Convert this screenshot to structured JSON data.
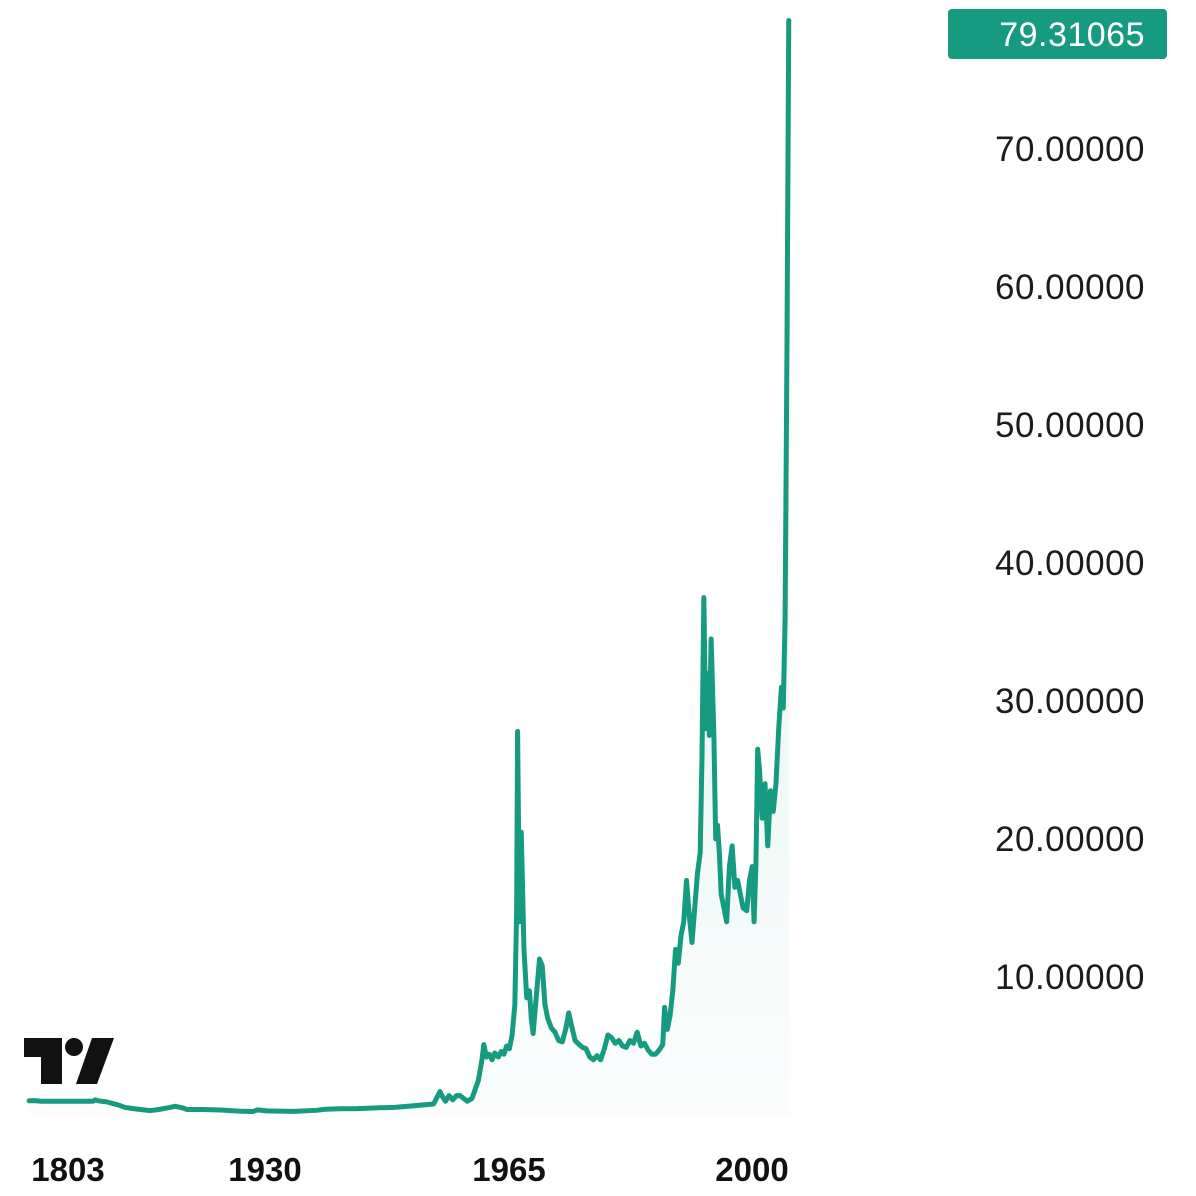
{
  "chart_data": {
    "type": "line",
    "title": "",
    "xlabel": "",
    "ylabel": "",
    "x_ticks": [
      "1803",
      "1930",
      "1965",
      "2000"
    ],
    "y_ticks": [
      "10.00000",
      "20.00000",
      "30.00000",
      "40.00000",
      "50.00000",
      "60.00000",
      "70.00000"
    ],
    "ylim": [
      0,
      79.31065
    ],
    "grid": false,
    "last_value_label": "79.31065",
    "colors": {
      "line": "#169a80",
      "badge": "#169a80",
      "logo": "#111111"
    },
    "logo_icon": "tradingview-logo-icon",
    "series": [
      {
        "values": [
          [
            1.0,
            1.03
          ],
          [
            1.6,
            1.04
          ],
          [
            2.3,
            1.0
          ],
          [
            3.0,
            1.0
          ],
          [
            8.0,
            1.0
          ],
          [
            8.27,
            1.1
          ],
          [
            8.6,
            1.02
          ],
          [
            9.5,
            0.95
          ],
          [
            10.8,
            0.72
          ],
          [
            11.5,
            0.55
          ],
          [
            12.4,
            0.46
          ],
          [
            13.2,
            0.4
          ],
          [
            14.3,
            0.32
          ],
          [
            15.2,
            0.4
          ],
          [
            16.2,
            0.52
          ],
          [
            17.0,
            0.63
          ],
          [
            17.8,
            0.52
          ],
          [
            18.3,
            0.4
          ],
          [
            20.0,
            0.4
          ],
          [
            22.0,
            0.36
          ],
          [
            23.5,
            0.3
          ],
          [
            24.0,
            0.28
          ],
          [
            25.5,
            0.25
          ],
          [
            26.0,
            0.37
          ],
          [
            27.0,
            0.3
          ],
          [
            30.0,
            0.26
          ],
          [
            32.5,
            0.34
          ],
          [
            33.5,
            0.42
          ],
          [
            35.0,
            0.45
          ],
          [
            37.0,
            0.46
          ],
          [
            39.0,
            0.52
          ],
          [
            41.0,
            0.55
          ],
          [
            43.0,
            0.66
          ],
          [
            45.3,
            0.8
          ],
          [
            46.0,
            1.7
          ],
          [
            46.3,
            1.3
          ],
          [
            46.6,
            1.0
          ],
          [
            47.0,
            1.4
          ],
          [
            47.4,
            1.1
          ],
          [
            47.8,
            1.4
          ],
          [
            48.2,
            1.4
          ],
          [
            49.0,
            1.0
          ],
          [
            49.5,
            1.2
          ],
          [
            50.2,
            2.5
          ],
          [
            50.6,
            4.0
          ],
          [
            50.8,
            5.1
          ],
          [
            51.1,
            4.2
          ],
          [
            51.4,
            4.4
          ],
          [
            51.7,
            4.0
          ],
          [
            52.0,
            4.5
          ],
          [
            52.4,
            4.2
          ],
          [
            52.7,
            4.6
          ],
          [
            53.0,
            4.4
          ],
          [
            53.3,
            5.0
          ],
          [
            53.6,
            4.8
          ],
          [
            53.9,
            5.8
          ],
          [
            54.2,
            8.0
          ],
          [
            54.4,
            15.0
          ],
          [
            54.5,
            27.8
          ],
          [
            54.7,
            14.0
          ],
          [
            54.9,
            20.5
          ],
          [
            55.2,
            12.0
          ],
          [
            55.5,
            8.5
          ],
          [
            55.8,
            9.0
          ],
          [
            56.0,
            7.0
          ],
          [
            56.2,
            5.9
          ],
          [
            56.6,
            9.0
          ],
          [
            56.9,
            11.3
          ],
          [
            57.2,
            10.8
          ],
          [
            57.5,
            8.0
          ],
          [
            57.8,
            7.0
          ],
          [
            58.2,
            6.3
          ],
          [
            58.6,
            6.0
          ],
          [
            59.0,
            5.4
          ],
          [
            59.4,
            5.3
          ],
          [
            59.8,
            6.3
          ],
          [
            60.1,
            7.4
          ],
          [
            60.4,
            6.5
          ],
          [
            60.8,
            5.4
          ],
          [
            61.1,
            5.2
          ],
          [
            61.6,
            4.9
          ],
          [
            62.0,
            4.8
          ],
          [
            62.4,
            4.2
          ],
          [
            62.8,
            4.0
          ],
          [
            63.2,
            4.3
          ],
          [
            63.6,
            4.0
          ],
          [
            64.0,
            4.8
          ],
          [
            64.4,
            5.8
          ],
          [
            64.8,
            5.6
          ],
          [
            65.2,
            5.2
          ],
          [
            65.6,
            5.4
          ],
          [
            66.0,
            5.0
          ],
          [
            66.4,
            4.9
          ],
          [
            66.8,
            5.4
          ],
          [
            67.2,
            5.2
          ],
          [
            67.6,
            6.0
          ],
          [
            68.0,
            5.0
          ],
          [
            68.4,
            5.2
          ],
          [
            68.8,
            4.7
          ],
          [
            69.2,
            4.4
          ],
          [
            69.6,
            4.4
          ],
          [
            70.0,
            4.7
          ],
          [
            70.4,
            5.1
          ],
          [
            70.6,
            7.8
          ],
          [
            70.9,
            6.2
          ],
          [
            71.2,
            7.2
          ],
          [
            71.5,
            9.0
          ],
          [
            71.8,
            12.0
          ],
          [
            72.1,
            11.0
          ],
          [
            72.4,
            13.0
          ],
          [
            72.7,
            14.0
          ],
          [
            73.0,
            17.0
          ],
          [
            73.3,
            14.5
          ],
          [
            73.6,
            12.5
          ],
          [
            73.9,
            15.0
          ],
          [
            74.2,
            17.5
          ],
          [
            74.5,
            19.0
          ],
          [
            74.7,
            26.0
          ],
          [
            74.9,
            37.5
          ],
          [
            75.1,
            28.0
          ],
          [
            75.3,
            32.0
          ],
          [
            75.5,
            27.5
          ],
          [
            75.7,
            34.5
          ],
          [
            76.0,
            27.5
          ],
          [
            76.2,
            20.0
          ],
          [
            76.4,
            21.0
          ],
          [
            76.6,
            19.0
          ],
          [
            76.8,
            16.0
          ],
          [
            77.1,
            15.0
          ],
          [
            77.4,
            14.0
          ],
          [
            77.7,
            18.0
          ],
          [
            78.0,
            19.5
          ],
          [
            78.3,
            16.5
          ],
          [
            78.6,
            17.0
          ],
          [
            78.9,
            16.0
          ],
          [
            79.2,
            15.0
          ],
          [
            79.6,
            14.8
          ],
          [
            79.9,
            17.0
          ],
          [
            80.2,
            18.0
          ],
          [
            80.4,
            14.0
          ],
          [
            80.6,
            18.0
          ],
          [
            80.8,
            26.5
          ],
          [
            81.0,
            25.0
          ],
          [
            81.3,
            21.5
          ],
          [
            81.6,
            24.0
          ],
          [
            81.9,
            19.5
          ],
          [
            82.2,
            23.5
          ],
          [
            82.5,
            22.0
          ],
          [
            82.8,
            24.0
          ],
          [
            83.1,
            28.0
          ],
          [
            83.4,
            31.0
          ],
          [
            83.6,
            29.5
          ],
          [
            83.8,
            36.0
          ],
          [
            84.0,
            55.0
          ],
          [
            84.2,
            79.31065
          ]
        ]
      }
    ]
  }
}
